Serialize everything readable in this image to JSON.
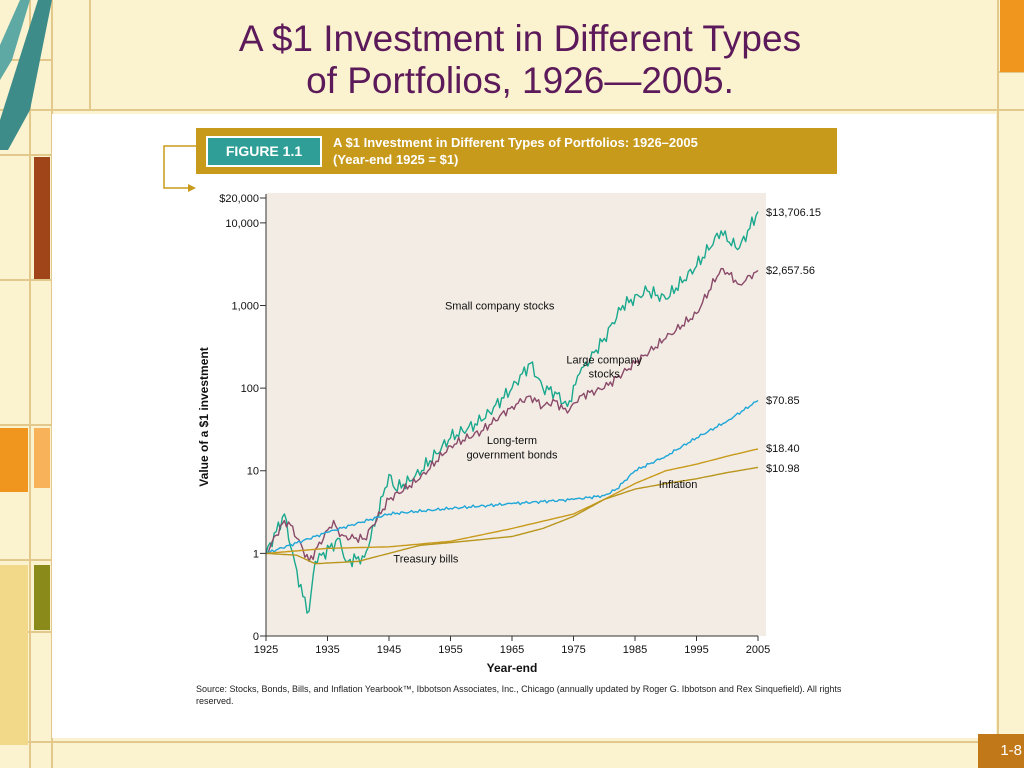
{
  "slide": {
    "title_line1": "A $1 Investment in Different Types",
    "title_line2": "of Portfolios, 1926—2005.",
    "page_number": "1-8"
  },
  "figure": {
    "tag": "FIGURE 1.1",
    "caption_line1": "A $1 Investment in Different Types of Portfolios: 1926–2005",
    "caption_line2": "(Year-end 1925 = $1)",
    "source": "Source: Stocks, Bonds, Bills, and Inflation Yearbook™, Ibbotson Associates, Inc., Chicago (annually updated by Roger G. Ibbotson and Rex Sinquefield). All rights reserved."
  },
  "colors": {
    "title": "#5c1a5a",
    "figure_band": "#c89a1c",
    "figure_tag": "#2e9e97",
    "plot_bg": "#f3ece4",
    "small_company": "#1aa88e",
    "large_company": "#8a4a6a",
    "government_bonds": "#1ea6d8",
    "treasury_bills": "#c89a1c",
    "inflation": "#b8961e"
  },
  "chart_data": {
    "type": "line",
    "title": "A $1 Investment in Different Types of Portfolios: 1926–2005",
    "subtitle": "(Year-end 1925 = $1)",
    "xlabel": "Year-end",
    "ylabel": "Value of a $1 investment",
    "y_scale": "log",
    "xlim": [
      1925,
      2005
    ],
    "ylim": [
      0.1,
      20000
    ],
    "x_ticks": [
      "1925",
      "1935",
      "1945",
      "1955",
      "1965",
      "1975",
      "1985",
      "1995",
      "2005"
    ],
    "y_ticks": [
      {
        "value": 20000,
        "label": "$20,000"
      },
      {
        "value": 10000,
        "label": "10,000"
      },
      {
        "value": 1000,
        "label": "1,000"
      },
      {
        "value": 100,
        "label": "100"
      },
      {
        "value": 10,
        "label": "10"
      },
      {
        "value": 1,
        "label": "1"
      },
      {
        "value": 0.1,
        "label": "0"
      }
    ],
    "grid": false,
    "series": [
      {
        "key": "small_company",
        "name": "Small company stocks",
        "end_label": "$13,706.15",
        "x": [
          1925,
          1928,
          1929,
          1931,
          1932,
          1933,
          1937,
          1938,
          1941,
          1942,
          1945,
          1946,
          1949,
          1955,
          1960,
          1965,
          1968,
          1970,
          1972,
          1974,
          1976,
          1980,
          1983,
          1987,
          1990,
          1995,
          1999,
          2000,
          2002,
          2005
        ],
        "values": [
          1,
          3,
          1.2,
          0.3,
          0.2,
          0.8,
          1.5,
          0.8,
          0.9,
          1.5,
          9,
          6,
          8,
          25,
          40,
          100,
          200,
          100,
          90,
          60,
          150,
          400,
          1000,
          1500,
          1200,
          3000,
          8000,
          6000,
          5000,
          13706.15
        ]
      },
      {
        "key": "large_company",
        "name": "Large company stocks",
        "end_label": "$2,657.56",
        "x": [
          1925,
          1928,
          1929,
          1932,
          1936,
          1937,
          1941,
          1945,
          1950,
          1955,
          1960,
          1965,
          1968,
          1970,
          1972,
          1974,
          1976,
          1980,
          1985,
          1990,
          1995,
          1999,
          2000,
          2002,
          2005
        ],
        "values": [
          1,
          2.5,
          2.2,
          0.8,
          2.5,
          1.6,
          1.5,
          4.5,
          8,
          20,
          30,
          60,
          80,
          60,
          70,
          50,
          80,
          100,
          200,
          400,
          800,
          2800,
          2500,
          1800,
          2657.56
        ]
      },
      {
        "key": "government_bonds",
        "name": "Long-term government bonds",
        "end_label": "$70.85",
        "x": [
          1925,
          1935,
          1945,
          1955,
          1965,
          1975,
          1980,
          1982,
          1985,
          1990,
          1995,
          2000,
          2005
        ],
        "values": [
          1,
          1.8,
          3,
          3.5,
          4,
          4.5,
          5,
          6,
          10,
          15,
          25,
          40,
          70.85
        ]
      },
      {
        "key": "treasury_bills",
        "name": "Treasury bills",
        "end_label": "$18.40",
        "x": [
          1925,
          1935,
          1945,
          1955,
          1965,
          1975,
          1980,
          1985,
          1990,
          1995,
          2000,
          2005
        ],
        "values": [
          1,
          1.15,
          1.2,
          1.4,
          2,
          3,
          4.5,
          7,
          10,
          12,
          15,
          18.4
        ]
      },
      {
        "key": "inflation",
        "name": "Inflation",
        "end_label": "$10.98",
        "x": [
          1925,
          1930,
          1933,
          1940,
          1945,
          1950,
          1955,
          1965,
          1970,
          1975,
          1980,
          1985,
          1990,
          1995,
          2000,
          2005
        ],
        "values": [
          1,
          0.95,
          0.75,
          0.8,
          1.0,
          1.25,
          1.35,
          1.6,
          2,
          2.8,
          4.5,
          6,
          7,
          8,
          9.5,
          10.98
        ]
      }
    ],
    "annotations": [
      {
        "text": "Small company stocks",
        "x": 1963,
        "y": 900
      },
      {
        "text": "Large company",
        "x": 1980,
        "y": 200
      },
      {
        "text": "stocks",
        "x": 1980,
        "y": 135
      },
      {
        "text": "Long-term",
        "x": 1965,
        "y": 21
      },
      {
        "text": "government bonds",
        "x": 1965,
        "y": 14
      },
      {
        "text": "Treasury bills",
        "x": 1951,
        "y": 0.78
      },
      {
        "text": "Inflation",
        "x": 1992,
        "y": 6.2
      }
    ]
  }
}
